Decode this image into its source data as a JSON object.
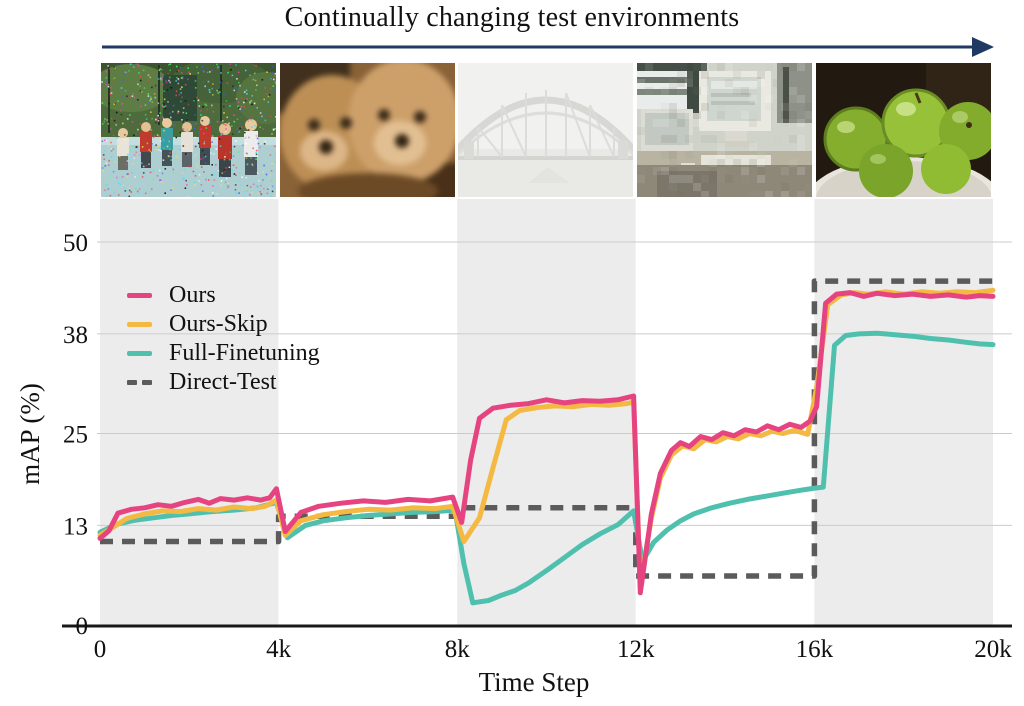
{
  "figure": {
    "title": "Continually changing test environments",
    "environments": [
      {
        "label": "Impulse noise"
      },
      {
        "label": "Motion blur"
      },
      {
        "label": "Contrast"
      },
      {
        "label": "Pixelate"
      },
      {
        "label": "Clean"
      }
    ]
  },
  "colors": {
    "arrow": "#1F3864",
    "band_shade": "#ECECEC",
    "band_plain": "#FFFFFF",
    "gridline": "#CBCBCB",
    "axis": "#181818",
    "text": "#111111"
  },
  "chart_data": {
    "type": "line",
    "title": "Continually changing test environments",
    "xlabel": "Time Step",
    "ylabel": "mAP (%)",
    "xlim": [
      0,
      20
    ],
    "ylim": [
      0,
      50
    ],
    "grid": true,
    "legend_position": "upper-left",
    "x_tick_labels": [
      "0",
      "4k",
      "8k",
      "12k",
      "16k",
      "20k"
    ],
    "x_tick_values": [
      0,
      4,
      8,
      12,
      16,
      20
    ],
    "y_tick_labels": [
      "0",
      "13",
      "25",
      "38",
      "50"
    ],
    "y_tick_values": [
      0,
      13,
      25,
      38,
      50
    ],
    "segment_boundaries_k": [
      0,
      4,
      8,
      12,
      16,
      20
    ],
    "series": [
      {
        "name": "Ours",
        "color": "#E64481",
        "style": "solid",
        "points": [
          [
            0,
            11.3
          ],
          [
            0.2,
            12.3
          ],
          [
            0.4,
            14.6
          ],
          [
            0.7,
            15.1
          ],
          [
            1.0,
            15.3
          ],
          [
            1.3,
            15.7
          ],
          [
            1.6,
            15.5
          ],
          [
            1.9,
            16.0
          ],
          [
            2.2,
            16.4
          ],
          [
            2.45,
            15.9
          ],
          [
            2.7,
            16.5
          ],
          [
            3.0,
            16.3
          ],
          [
            3.3,
            16.6
          ],
          [
            3.6,
            16.3
          ],
          [
            3.8,
            16.6
          ],
          [
            3.95,
            17.8
          ],
          [
            4.15,
            12.2
          ],
          [
            4.5,
            14.7
          ],
          [
            4.9,
            15.5
          ],
          [
            5.4,
            15.9
          ],
          [
            5.9,
            16.2
          ],
          [
            6.4,
            16.0
          ],
          [
            6.9,
            16.4
          ],
          [
            7.4,
            16.2
          ],
          [
            7.9,
            16.7
          ],
          [
            8.1,
            13.4
          ],
          [
            8.3,
            21.5
          ],
          [
            8.5,
            27.0
          ],
          [
            8.8,
            28.3
          ],
          [
            9.2,
            28.7
          ],
          [
            9.6,
            28.9
          ],
          [
            10.0,
            29.4
          ],
          [
            10.4,
            29.0
          ],
          [
            10.8,
            29.3
          ],
          [
            11.2,
            29.2
          ],
          [
            11.6,
            29.4
          ],
          [
            11.95,
            29.9
          ],
          [
            12.1,
            4.2
          ],
          [
            12.35,
            14.5
          ],
          [
            12.55,
            19.8
          ],
          [
            12.8,
            22.8
          ],
          [
            13.0,
            23.8
          ],
          [
            13.2,
            23.3
          ],
          [
            13.45,
            24.6
          ],
          [
            13.7,
            24.2
          ],
          [
            13.95,
            25.1
          ],
          [
            14.2,
            24.7
          ],
          [
            14.45,
            25.5
          ],
          [
            14.7,
            25.2
          ],
          [
            14.95,
            26.0
          ],
          [
            15.2,
            25.5
          ],
          [
            15.45,
            26.2
          ],
          [
            15.7,
            25.8
          ],
          [
            15.9,
            26.6
          ],
          [
            16.05,
            28.5
          ],
          [
            16.25,
            42.0
          ],
          [
            16.5,
            43.2
          ],
          [
            16.8,
            43.4
          ],
          [
            17.1,
            42.9
          ],
          [
            17.4,
            43.3
          ],
          [
            17.8,
            43.0
          ],
          [
            18.2,
            43.2
          ],
          [
            18.6,
            42.9
          ],
          [
            19.0,
            43.1
          ],
          [
            19.4,
            42.8
          ],
          [
            19.7,
            43.0
          ],
          [
            20,
            42.9
          ]
        ]
      },
      {
        "name": "Ours-Skip",
        "color": "#F4B942",
        "style": "solid",
        "points": [
          [
            0,
            11.7
          ],
          [
            0.3,
            12.8
          ],
          [
            0.6,
            13.9
          ],
          [
            1.0,
            14.5
          ],
          [
            1.4,
            14.9
          ],
          [
            1.8,
            14.8
          ],
          [
            2.2,
            15.2
          ],
          [
            2.6,
            15.0
          ],
          [
            3.0,
            15.4
          ],
          [
            3.4,
            15.2
          ],
          [
            3.7,
            15.5
          ],
          [
            3.95,
            16.3
          ],
          [
            4.15,
            11.7
          ],
          [
            4.5,
            13.6
          ],
          [
            5.0,
            14.4
          ],
          [
            5.5,
            14.8
          ],
          [
            6.0,
            15.1
          ],
          [
            6.5,
            15.0
          ],
          [
            7.0,
            15.3
          ],
          [
            7.5,
            15.2
          ],
          [
            7.9,
            15.5
          ],
          [
            8.15,
            10.9
          ],
          [
            8.5,
            14.0
          ],
          [
            8.8,
            20.5
          ],
          [
            9.1,
            26.8
          ],
          [
            9.4,
            28.0
          ],
          [
            9.8,
            28.4
          ],
          [
            10.2,
            28.6
          ],
          [
            10.6,
            28.5
          ],
          [
            11.0,
            28.8
          ],
          [
            11.4,
            28.7
          ],
          [
            11.8,
            28.9
          ],
          [
            11.95,
            29.1
          ],
          [
            12.1,
            5.3
          ],
          [
            12.35,
            14.0
          ],
          [
            12.55,
            19.2
          ],
          [
            12.8,
            22.2
          ],
          [
            13.05,
            23.4
          ],
          [
            13.3,
            23.0
          ],
          [
            13.55,
            24.2
          ],
          [
            13.8,
            23.9
          ],
          [
            14.05,
            24.6
          ],
          [
            14.3,
            24.3
          ],
          [
            14.55,
            25.0
          ],
          [
            14.8,
            24.7
          ],
          [
            15.05,
            25.3
          ],
          [
            15.3,
            25.0
          ],
          [
            15.55,
            25.4
          ],
          [
            15.85,
            24.9
          ],
          [
            16.05,
            31.0
          ],
          [
            16.3,
            41.8
          ],
          [
            16.6,
            43.1
          ],
          [
            16.9,
            43.4
          ],
          [
            17.2,
            43.2
          ],
          [
            17.6,
            43.5
          ],
          [
            18.0,
            43.2
          ],
          [
            18.4,
            43.5
          ],
          [
            18.8,
            43.3
          ],
          [
            19.2,
            43.5
          ],
          [
            19.6,
            43.4
          ],
          [
            20,
            43.7
          ]
        ]
      },
      {
        "name": "Full-Finetuning",
        "color": "#50C0AE",
        "style": "solid",
        "points": [
          [
            0,
            12.1
          ],
          [
            0.4,
            13.2
          ],
          [
            0.8,
            13.7
          ],
          [
            1.2,
            14.0
          ],
          [
            1.6,
            14.3
          ],
          [
            2.0,
            14.5
          ],
          [
            2.5,
            14.8
          ],
          [
            3.0,
            15.0
          ],
          [
            3.5,
            15.3
          ],
          [
            3.95,
            16.0
          ],
          [
            4.2,
            11.4
          ],
          [
            4.6,
            13.0
          ],
          [
            5.0,
            13.6
          ],
          [
            5.5,
            14.0
          ],
          [
            6.0,
            14.3
          ],
          [
            6.5,
            14.5
          ],
          [
            7.0,
            14.7
          ],
          [
            7.5,
            14.8
          ],
          [
            7.95,
            15.0
          ],
          [
            8.15,
            8.0
          ],
          [
            8.35,
            2.9
          ],
          [
            8.7,
            3.2
          ],
          [
            9.0,
            3.9
          ],
          [
            9.3,
            4.5
          ],
          [
            9.6,
            5.5
          ],
          [
            10.0,
            7.1
          ],
          [
            10.4,
            8.8
          ],
          [
            10.8,
            10.5
          ],
          [
            11.2,
            11.9
          ],
          [
            11.6,
            13.1
          ],
          [
            11.95,
            14.9
          ],
          [
            12.15,
            8.3
          ],
          [
            12.4,
            10.8
          ],
          [
            12.7,
            12.4
          ],
          [
            13.0,
            13.6
          ],
          [
            13.3,
            14.5
          ],
          [
            13.7,
            15.3
          ],
          [
            14.1,
            15.9
          ],
          [
            14.5,
            16.4
          ],
          [
            14.9,
            16.8
          ],
          [
            15.3,
            17.2
          ],
          [
            15.7,
            17.6
          ],
          [
            16.05,
            17.9
          ],
          [
            16.2,
            18.0
          ],
          [
            16.45,
            36.5
          ],
          [
            16.7,
            37.8
          ],
          [
            17.0,
            38.0
          ],
          [
            17.4,
            38.1
          ],
          [
            17.8,
            37.9
          ],
          [
            18.2,
            37.7
          ],
          [
            18.6,
            37.4
          ],
          [
            19.0,
            37.2
          ],
          [
            19.4,
            36.9
          ],
          [
            19.7,
            36.7
          ],
          [
            20,
            36.6
          ]
        ]
      },
      {
        "name": "Direct-Test",
        "color": "#5B5B5B",
        "style": "dashed",
        "points": [
          [
            0,
            10.9
          ],
          [
            4,
            10.9
          ],
          [
            4,
            14.2
          ],
          [
            8,
            14.2
          ],
          [
            8,
            15.3
          ],
          [
            12,
            15.3
          ],
          [
            12,
            6.4
          ],
          [
            16,
            6.4
          ],
          [
            16,
            44.9
          ],
          [
            20,
            44.9
          ]
        ]
      }
    ]
  }
}
